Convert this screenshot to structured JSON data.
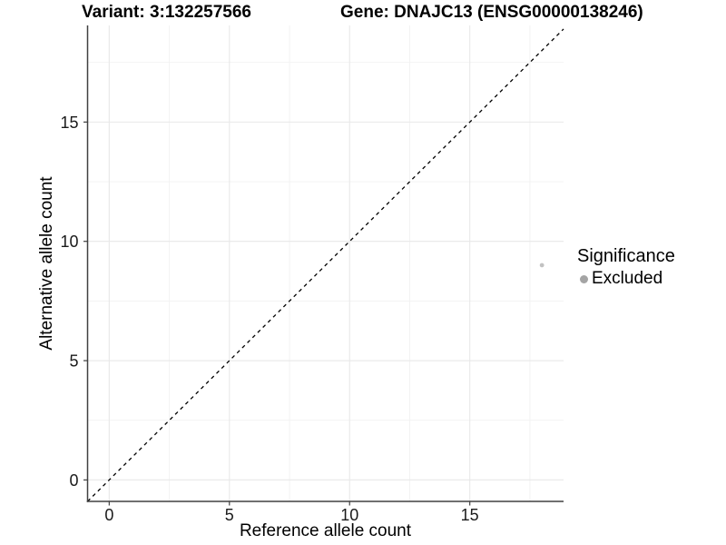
{
  "figure": {
    "title_left": "Variant: 3:132257566",
    "title_right": "Gene: DNAJC13 (ENSG00000138246)"
  },
  "chart_data": {
    "type": "scatter",
    "title": "Variant: 3:132257566   Gene: DNAJC13 (ENSG00000138246)",
    "xlabel": "Reference allele count",
    "ylabel": "Alternative allele count",
    "xlim": [
      -0.9,
      18.9
    ],
    "ylim": [
      -0.9,
      19.05
    ],
    "x_ticks": [
      0,
      5,
      10,
      15
    ],
    "y_ticks": [
      0,
      5,
      10,
      15
    ],
    "x_minor_ticks": [
      2.5,
      7.5,
      12.5,
      17.5
    ],
    "y_minor_ticks": [
      2.5,
      7.5,
      12.5,
      17.5
    ],
    "grid": "major-and-minor",
    "identity_line": {
      "equation": "y = x",
      "style": "dashed",
      "color": "#000000"
    },
    "series": [
      {
        "name": "Excluded",
        "color": "#c2c2c2",
        "points": [
          {
            "x": 18,
            "y": 9
          }
        ]
      }
    ],
    "legend": {
      "title": "Significance",
      "position": "right",
      "items": [
        {
          "label": "Excluded",
          "swatch_color": "#a4a4a4"
        }
      ]
    },
    "colors": {
      "axis_line": "#404040",
      "tick_label": "#1a1a1a",
      "grid_major": "#e8e8e8",
      "grid_minor": "#f2f2f2",
      "background": "#ffffff"
    }
  }
}
